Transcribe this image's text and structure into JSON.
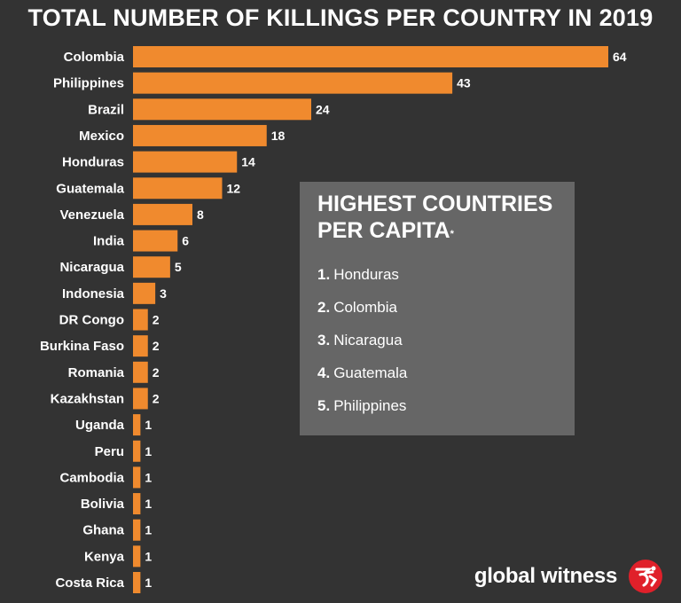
{
  "chart_data": {
    "type": "bar",
    "orientation": "horizontal",
    "title": "TOTAL NUMBER OF KILLINGS PER COUNTRY IN 2019",
    "categories": [
      "Colombia",
      "Philippines",
      "Brazil",
      "Mexico",
      "Honduras",
      "Guatemala",
      "Venezuela",
      "India",
      "Nicaragua",
      "Indonesia",
      "DR Congo",
      "Burkina Faso",
      "Romania",
      "Kazakhstan",
      "Uganda",
      "Peru",
      "Cambodia",
      "Bolivia",
      "Ghana",
      "Kenya",
      "Costa Rica"
    ],
    "values": [
      64,
      43,
      24,
      18,
      14,
      12,
      8,
      6,
      5,
      3,
      2,
      2,
      2,
      2,
      1,
      1,
      1,
      1,
      1,
      1,
      1
    ],
    "xlim": [
      0,
      64
    ],
    "grid": false,
    "bar_color": "#f08a2e"
  },
  "panel": {
    "title_line1": "HIGHEST COUNTRIES",
    "title_line2": "PER CAPITA",
    "title_mark": "*",
    "items": [
      {
        "rank": "1.",
        "name": "Honduras"
      },
      {
        "rank": "2.",
        "name": "Colombia"
      },
      {
        "rank": "3.",
        "name": "Nicaragua"
      },
      {
        "rank": "4.",
        "name": "Guatemala"
      },
      {
        "rank": "5.",
        "name": "Philippines"
      }
    ]
  },
  "brand": {
    "name": "global witness",
    "logo_icon": "global-witness-logo-icon",
    "logo_color": "#e0202a"
  },
  "colors": {
    "background": "#333333",
    "panel": "#666666",
    "text": "#ffffff"
  }
}
